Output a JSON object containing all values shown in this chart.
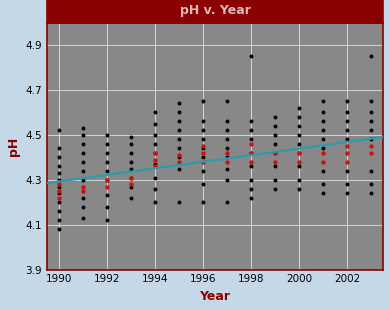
{
  "title": "pH v. Year",
  "xlabel": "Year",
  "ylabel": "pH",
  "xlim": [
    1989.5,
    2003.5
  ],
  "ylim": [
    3.9,
    5.0
  ],
  "yticks": [
    3.9,
    4.1,
    4.3,
    4.5,
    4.7,
    4.9
  ],
  "xticks": [
    1990,
    1992,
    1994,
    1996,
    1998,
    2000,
    2002
  ],
  "bg_color": "#888888",
  "outer_bg": "#c5d8e8",
  "title_bg": "#8b0000",
  "title_color": "#ddb8b8",
  "axis_label_color": "#8b0000",
  "spine_color": "#8b0000",
  "trend_color": "#2b9caa",
  "trend_x": [
    1989.5,
    2003.5
  ],
  "trend_y": [
    4.285,
    4.49
  ],
  "black_dots": [
    [
      1990,
      4.08
    ],
    [
      1990,
      4.12
    ],
    [
      1990,
      4.16
    ],
    [
      1990,
      4.2
    ],
    [
      1990,
      4.24
    ],
    [
      1990,
      4.27
    ],
    [
      1990,
      4.3
    ],
    [
      1990,
      4.33
    ],
    [
      1990,
      4.36
    ],
    [
      1990,
      4.4
    ],
    [
      1990,
      4.44
    ],
    [
      1990,
      4.52
    ],
    [
      1991,
      4.13
    ],
    [
      1991,
      4.18
    ],
    [
      1991,
      4.22
    ],
    [
      1991,
      4.3
    ],
    [
      1991,
      4.34
    ],
    [
      1991,
      4.38
    ],
    [
      1991,
      4.42
    ],
    [
      1991,
      4.46
    ],
    [
      1991,
      4.5
    ],
    [
      1991,
      4.53
    ],
    [
      1992,
      4.12
    ],
    [
      1992,
      4.18
    ],
    [
      1992,
      4.23
    ],
    [
      1992,
      4.3
    ],
    [
      1992,
      4.34
    ],
    [
      1992,
      4.38
    ],
    [
      1992,
      4.42
    ],
    [
      1992,
      4.46
    ],
    [
      1992,
      4.5
    ],
    [
      1993,
      4.22
    ],
    [
      1993,
      4.27
    ],
    [
      1993,
      4.31
    ],
    [
      1993,
      4.35
    ],
    [
      1993,
      4.38
    ],
    [
      1993,
      4.42
    ],
    [
      1993,
      4.46
    ],
    [
      1993,
      4.49
    ],
    [
      1994,
      4.2
    ],
    [
      1994,
      4.26
    ],
    [
      1994,
      4.31
    ],
    [
      1994,
      4.37
    ],
    [
      1994,
      4.42
    ],
    [
      1994,
      4.46
    ],
    [
      1994,
      4.5
    ],
    [
      1994,
      4.55
    ],
    [
      1994,
      4.6
    ],
    [
      1995,
      4.2
    ],
    [
      1995,
      4.35
    ],
    [
      1995,
      4.4
    ],
    [
      1995,
      4.44
    ],
    [
      1995,
      4.48
    ],
    [
      1995,
      4.52
    ],
    [
      1995,
      4.56
    ],
    [
      1995,
      4.6
    ],
    [
      1995,
      4.64
    ],
    [
      1996,
      4.2
    ],
    [
      1996,
      4.28
    ],
    [
      1996,
      4.34
    ],
    [
      1996,
      4.4
    ],
    [
      1996,
      4.44
    ],
    [
      1996,
      4.48
    ],
    [
      1996,
      4.52
    ],
    [
      1996,
      4.56
    ],
    [
      1996,
      4.65
    ],
    [
      1997,
      4.2
    ],
    [
      1997,
      4.3
    ],
    [
      1997,
      4.35
    ],
    [
      1997,
      4.4
    ],
    [
      1997,
      4.44
    ],
    [
      1997,
      4.48
    ],
    [
      1997,
      4.52
    ],
    [
      1997,
      4.56
    ],
    [
      1997,
      4.65
    ],
    [
      1998,
      4.22
    ],
    [
      1998,
      4.26
    ],
    [
      1998,
      4.3
    ],
    [
      1998,
      4.36
    ],
    [
      1998,
      4.42
    ],
    [
      1998,
      4.48
    ],
    [
      1998,
      4.52
    ],
    [
      1998,
      4.56
    ],
    [
      1998,
      4.85
    ],
    [
      1999,
      4.26
    ],
    [
      1999,
      4.3
    ],
    [
      1999,
      4.36
    ],
    [
      1999,
      4.42
    ],
    [
      1999,
      4.46
    ],
    [
      1999,
      4.5
    ],
    [
      1999,
      4.54
    ],
    [
      1999,
      4.58
    ],
    [
      2000,
      4.26
    ],
    [
      2000,
      4.3
    ],
    [
      2000,
      4.36
    ],
    [
      2000,
      4.42
    ],
    [
      2000,
      4.46
    ],
    [
      2000,
      4.5
    ],
    [
      2000,
      4.54
    ],
    [
      2000,
      4.58
    ],
    [
      2000,
      4.62
    ],
    [
      2001,
      4.24
    ],
    [
      2001,
      4.28
    ],
    [
      2001,
      4.34
    ],
    [
      2001,
      4.44
    ],
    [
      2001,
      4.48
    ],
    [
      2001,
      4.52
    ],
    [
      2001,
      4.56
    ],
    [
      2001,
      4.6
    ],
    [
      2001,
      4.65
    ],
    [
      2002,
      4.24
    ],
    [
      2002,
      4.28
    ],
    [
      2002,
      4.34
    ],
    [
      2002,
      4.48
    ],
    [
      2002,
      4.52
    ],
    [
      2002,
      4.56
    ],
    [
      2002,
      4.6
    ],
    [
      2002,
      4.65
    ],
    [
      2003,
      4.24
    ],
    [
      2003,
      4.28
    ],
    [
      2003,
      4.34
    ],
    [
      2003,
      4.48
    ],
    [
      2003,
      4.52
    ],
    [
      2003,
      4.56
    ],
    [
      2003,
      4.6
    ],
    [
      2003,
      4.65
    ],
    [
      2003,
      4.85
    ]
  ],
  "red_dots": [
    [
      1990,
      4.22
    ],
    [
      1990,
      4.25
    ],
    [
      1990,
      4.28
    ],
    [
      1991,
      4.25
    ],
    [
      1991,
      4.27
    ],
    [
      1992,
      4.27
    ],
    [
      1992,
      4.3
    ],
    [
      1993,
      4.28
    ],
    [
      1993,
      4.31
    ],
    [
      1994,
      4.36
    ],
    [
      1994,
      4.39
    ],
    [
      1994,
      4.42
    ],
    [
      1995,
      4.38
    ],
    [
      1995,
      4.41
    ],
    [
      1996,
      4.38
    ],
    [
      1996,
      4.42
    ],
    [
      1996,
      4.45
    ],
    [
      1997,
      4.38
    ],
    [
      1997,
      4.42
    ],
    [
      1998,
      4.38
    ],
    [
      1998,
      4.42
    ],
    [
      1998,
      4.46
    ],
    [
      1999,
      4.38
    ],
    [
      1999,
      4.42
    ],
    [
      2000,
      4.38
    ],
    [
      2000,
      4.42
    ],
    [
      2001,
      4.38
    ],
    [
      2001,
      4.42
    ],
    [
      2002,
      4.38
    ],
    [
      2002,
      4.42
    ],
    [
      2002,
      4.45
    ],
    [
      2003,
      4.42
    ],
    [
      2003,
      4.45
    ]
  ]
}
